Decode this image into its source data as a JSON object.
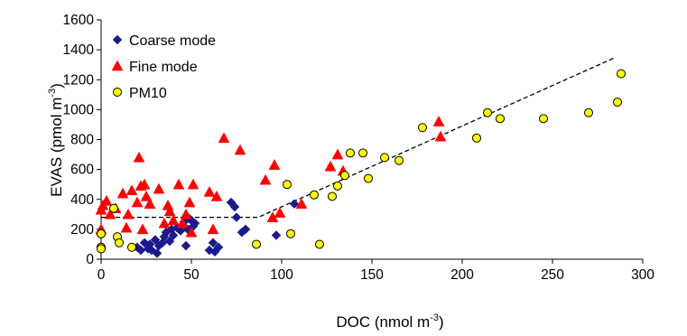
{
  "chart_data": {
    "type": "scatter",
    "xlabel": "DOC (nmol m",
    "xlabel_sup": "-3",
    "xlabel_end": ")",
    "ylabel": "EVAS (pmol m",
    "ylabel_sup": "-3",
    "ylabel_end": ")",
    "xlim": [
      0,
      300
    ],
    "ylim": [
      0,
      1600
    ],
    "xticks": [
      0,
      50,
      100,
      150,
      200,
      250,
      300
    ],
    "yticks": [
      0,
      200,
      400,
      600,
      800,
      1000,
      1200,
      1400,
      1600
    ],
    "grid": false,
    "legend_position": "top-left",
    "series": [
      {
        "name": "Coarse mode",
        "marker": "diamond",
        "color": "#1a1a8c",
        "points": [
          [
            20,
            80
          ],
          [
            22,
            60
          ],
          [
            24,
            110
          ],
          [
            26,
            70
          ],
          [
            27,
            100
          ],
          [
            28,
            60
          ],
          [
            30,
            130
          ],
          [
            31,
            40
          ],
          [
            32,
            90
          ],
          [
            34,
            110
          ],
          [
            35,
            150
          ],
          [
            36,
            180
          ],
          [
            38,
            120
          ],
          [
            39,
            200
          ],
          [
            40,
            160
          ],
          [
            42,
            210
          ],
          [
            44,
            190
          ],
          [
            45,
            230
          ],
          [
            46,
            250
          ],
          [
            47,
            90
          ],
          [
            48,
            200
          ],
          [
            49,
            270
          ],
          [
            50,
            260
          ],
          [
            51,
            220
          ],
          [
            52,
            240
          ],
          [
            60,
            60
          ],
          [
            62,
            110
          ],
          [
            63,
            50
          ],
          [
            65,
            80
          ],
          [
            72,
            380
          ],
          [
            74,
            350
          ],
          [
            75,
            280
          ],
          [
            78,
            180
          ],
          [
            80,
            200
          ],
          [
            97,
            160
          ],
          [
            107,
            370
          ]
        ]
      },
      {
        "name": "Fine mode",
        "marker": "triangle",
        "color": "#ff0000",
        "points": [
          [
            0,
            200
          ],
          [
            0,
            330
          ],
          [
            1,
            360
          ],
          [
            3,
            390
          ],
          [
            5,
            300
          ],
          [
            8,
            340
          ],
          [
            12,
            440
          ],
          [
            14,
            210
          ],
          [
            15,
            300
          ],
          [
            17,
            460
          ],
          [
            20,
            380
          ],
          [
            21,
            680
          ],
          [
            22,
            490
          ],
          [
            23,
            200
          ],
          [
            24,
            500
          ],
          [
            25,
            420
          ],
          [
            27,
            370
          ],
          [
            32,
            470
          ],
          [
            35,
            240
          ],
          [
            37,
            360
          ],
          [
            38,
            320
          ],
          [
            40,
            260
          ],
          [
            43,
            500
          ],
          [
            45,
            240
          ],
          [
            47,
            300
          ],
          [
            49,
            380
          ],
          [
            50,
            180
          ],
          [
            51,
            500
          ],
          [
            60,
            450
          ],
          [
            62,
            200
          ],
          [
            64,
            420
          ],
          [
            68,
            810
          ],
          [
            77,
            730
          ],
          [
            91,
            530
          ],
          [
            95,
            280
          ],
          [
            96,
            630
          ],
          [
            99,
            310
          ],
          [
            111,
            370
          ],
          [
            127,
            620
          ],
          [
            131,
            700
          ],
          [
            134,
            590
          ],
          [
            187,
            920
          ],
          [
            188,
            820
          ]
        ]
      },
      {
        "name": "PM10",
        "marker": "circle",
        "color": "#ffff00",
        "points": [
          [
            0,
            170
          ],
          [
            0,
            80
          ],
          [
            0,
            70
          ],
          [
            7,
            340
          ],
          [
            9,
            150
          ],
          [
            10,
            110
          ],
          [
            17,
            80
          ],
          [
            86,
            100
          ],
          [
            103,
            500
          ],
          [
            105,
            170
          ],
          [
            118,
            430
          ],
          [
            121,
            100
          ],
          [
            128,
            420
          ],
          [
            131,
            490
          ],
          [
            135,
            560
          ],
          [
            138,
            710
          ],
          [
            145,
            710
          ],
          [
            148,
            540
          ],
          [
            157,
            680
          ],
          [
            165,
            660
          ],
          [
            178,
            880
          ],
          [
            208,
            810
          ],
          [
            214,
            980
          ],
          [
            221,
            940
          ],
          [
            245,
            940
          ],
          [
            270,
            980
          ],
          [
            286,
            1050
          ],
          [
            288,
            1240
          ]
        ]
      }
    ],
    "trendline": {
      "style": "dashed",
      "color": "#000000",
      "points": [
        [
          0,
          280
        ],
        [
          87,
          280
        ],
        [
          285,
          1350
        ]
      ]
    }
  }
}
